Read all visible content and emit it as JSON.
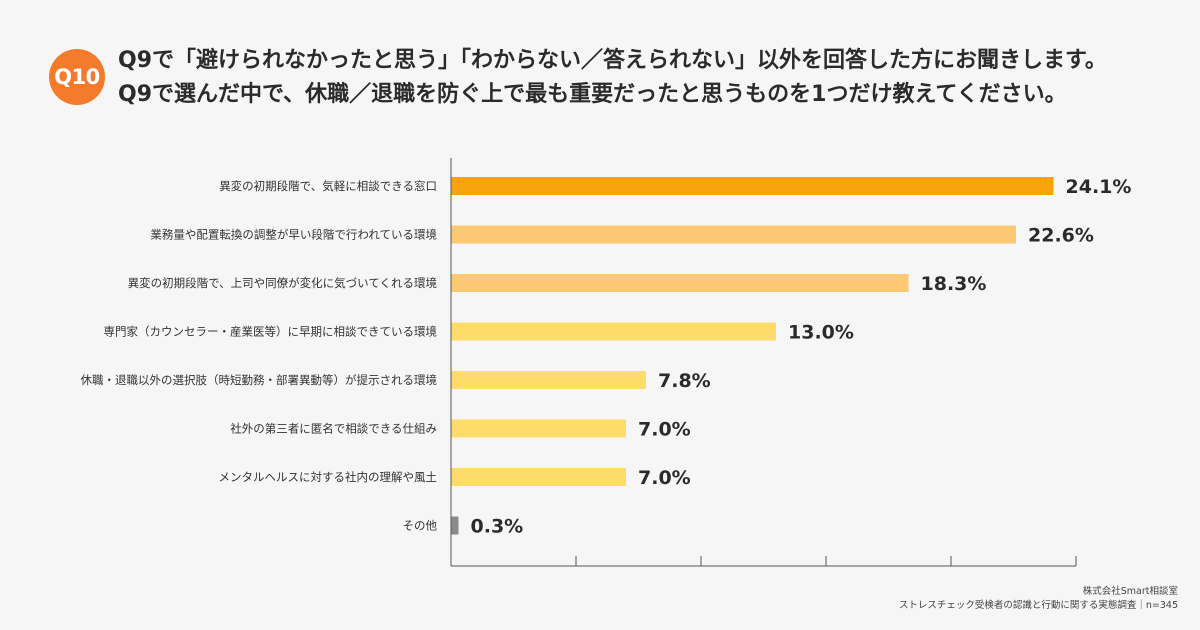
{
  "badge": "Q10",
  "title": {
    "line1": "Q9で「避けられなかったと思う」「わからない／答えられない」以外を回答した方にお聞きします。",
    "line2": "Q9で選んだ中で、休職／退職を防ぐ上で最も重要だったと思うものを1つだけ教えてください。"
  },
  "footer": {
    "company": "株式会社Smart相談室",
    "source": "ストレスチェック受検者の認識と行動に関する実態調査｜n=345"
  },
  "colors": {
    "top": "#fba20f",
    "mid": "#fdc874",
    "light": "#fddc6a",
    "other": "#8a8a8a",
    "axis": "#555555"
  },
  "chart_data": {
    "type": "bar",
    "orientation": "horizontal",
    "categories": [
      "異変の初期段階で、気軽に相談できる窓口",
      "業務量や配置転換の調整が早い段階で行われている環境",
      "異変の初期段階で、上司や同僚が変化に気づいてくれる環境",
      "専門家（カウンセラー・産業医等）に早期に相談できている環境",
      "休職・退職以外の選択肢（時短勤務・部署異動等）が提示される環境",
      "社外の第三者に匿名で相談できる仕組み",
      "メンタルヘルスに対する社内の理解や風土",
      "その他"
    ],
    "values": [
      24.1,
      22.6,
      18.3,
      13.0,
      7.8,
      7.0,
      7.0,
      0.3
    ],
    "value_labels": [
      "24.1%",
      "22.6%",
      "18.3%",
      "13.0%",
      "7.8%",
      "7.0%",
      "7.0%",
      "0.3%"
    ],
    "bar_colors": [
      "top",
      "mid",
      "mid",
      "light",
      "light",
      "light",
      "light",
      "other"
    ],
    "xlim": [
      0,
      25
    ],
    "x_ticks": [
      0,
      5,
      10,
      15,
      20,
      25
    ],
    "grid": false,
    "legend": "none"
  }
}
